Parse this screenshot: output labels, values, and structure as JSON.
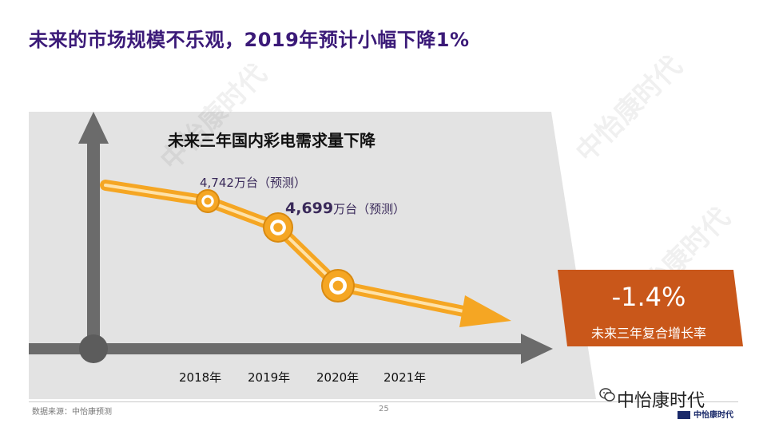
{
  "title": "未来的市场规模不乐观，2019年预计小幅下降1%",
  "chart_data": {
    "type": "line",
    "title": "未来三年国内彩电需求量下降",
    "categories": [
      "2018年",
      "2019年",
      "2020年",
      "2021年"
    ],
    "points": [
      {
        "category": "2019年",
        "value": 4742,
        "unit": "万台",
        "note": "（预测）"
      },
      {
        "category": "2020年",
        "value": 4699,
        "unit": "万台",
        "note": "（预测）"
      }
    ],
    "annotation_labels": {
      "p1_prefix": "4,742",
      "p1_suffix": "万台（预测）",
      "p2_number": "4,699",
      "p2_suffix": "万台（预测）"
    },
    "colors": {
      "line": "#f5a623",
      "axis": "#6b6b6b",
      "badge": "#c9571a"
    }
  },
  "growth": {
    "value": "-1.4%",
    "label": "未来三年复合增长率"
  },
  "footer": {
    "source": "数据来源：中怡康预测",
    "page": "25"
  },
  "brand": {
    "name": "中怡康时代",
    "logo_text": "中怡康时代",
    "watermark": "中怡康时代"
  }
}
